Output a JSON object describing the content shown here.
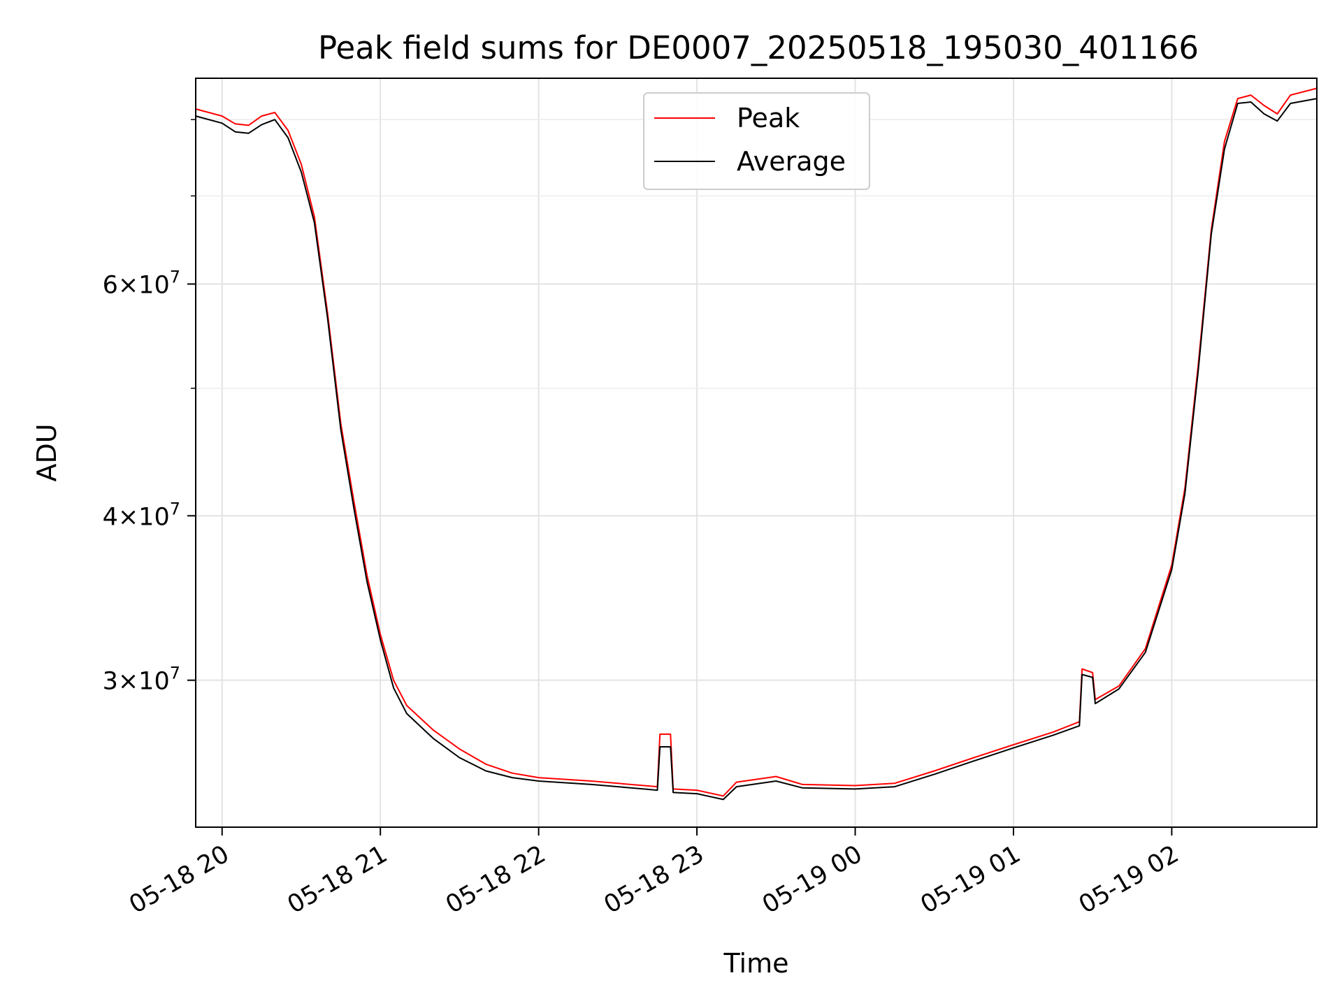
{
  "chart_data": {
    "type": "line",
    "title": "Peak field sums for DE0007_20250518_195030_401166",
    "xlabel": "Time",
    "ylabel": "ADU",
    "yscale": "log",
    "ylim": [
      23200000,
      86000000
    ],
    "xlim": [
      "2025-05-18 19:50",
      "2025-05-19 02:55"
    ],
    "x_ticks": [
      {
        "t": "2025-05-18 20:00",
        "label": "05-18 20"
      },
      {
        "t": "2025-05-18 21:00",
        "label": "05-18 21"
      },
      {
        "t": "2025-05-18 22:00",
        "label": "05-18 22"
      },
      {
        "t": "2025-05-18 23:00",
        "label": "05-18 23"
      },
      {
        "t": "2025-05-19 00:00",
        "label": "05-19 00"
      },
      {
        "t": "2025-05-19 01:00",
        "label": "05-19 01"
      },
      {
        "t": "2025-05-19 02:00",
        "label": "05-19 02"
      }
    ],
    "y_major_ticks": [
      {
        "value": 30000000,
        "mant": "3",
        "exp": "7"
      },
      {
        "value": 40000000,
        "mant": "4",
        "exp": "7"
      },
      {
        "value": 60000000,
        "mant": "6",
        "exp": "7"
      }
    ],
    "y_minor_ticks": [
      50000000,
      70000000,
      80000000
    ],
    "grid": true,
    "legend": {
      "position": "upper center"
    },
    "series": [
      {
        "name": "Peak",
        "color": "#ff0000",
        "points": [
          [
            "2025-05-18 19:50",
            81500000
          ],
          [
            "2025-05-18 20:00",
            80500000
          ],
          [
            "2025-05-18 20:05",
            79400000
          ],
          [
            "2025-05-18 20:10",
            79200000
          ],
          [
            "2025-05-18 20:15",
            80500000
          ],
          [
            "2025-05-18 20:20",
            81000000
          ],
          [
            "2025-05-18 20:25",
            78500000
          ],
          [
            "2025-05-18 20:30",
            74000000
          ],
          [
            "2025-05-18 20:35",
            67500000
          ],
          [
            "2025-05-18 20:40",
            57000000
          ],
          [
            "2025-05-18 20:45",
            47000000
          ],
          [
            "2025-05-18 20:50",
            41000000
          ],
          [
            "2025-05-18 20:55",
            36000000
          ],
          [
            "2025-05-18 21:00",
            32500000
          ],
          [
            "2025-05-18 21:05",
            30000000
          ],
          [
            "2025-05-18 21:10",
            28700000
          ],
          [
            "2025-05-18 21:20",
            27500000
          ],
          [
            "2025-05-18 21:30",
            26600000
          ],
          [
            "2025-05-18 21:40",
            25900000
          ],
          [
            "2025-05-18 21:50",
            25500000
          ],
          [
            "2025-05-18 22:00",
            25300000
          ],
          [
            "2025-05-18 22:20",
            25150000
          ],
          [
            "2025-05-18 22:40",
            24950000
          ],
          [
            "2025-05-18 22:45",
            24900000
          ],
          [
            "2025-05-18 22:46",
            27300000
          ],
          [
            "2025-05-18 22:50",
            27300000
          ],
          [
            "2025-05-18 22:51",
            24800000
          ],
          [
            "2025-05-18 23:00",
            24750000
          ],
          [
            "2025-05-18 23:10",
            24500000
          ],
          [
            "2025-05-18 23:15",
            25100000
          ],
          [
            "2025-05-18 23:30",
            25350000
          ],
          [
            "2025-05-18 23:40",
            25000000
          ],
          [
            "2025-05-19 00:00",
            24950000
          ],
          [
            "2025-05-19 00:15",
            25050000
          ],
          [
            "2025-05-19 00:30",
            25600000
          ],
          [
            "2025-05-19 00:45",
            26200000
          ],
          [
            "2025-05-19 01:00",
            26800000
          ],
          [
            "2025-05-19 01:15",
            27400000
          ],
          [
            "2025-05-19 01:25",
            27900000
          ],
          [
            "2025-05-19 01:26",
            30600000
          ],
          [
            "2025-05-19 01:30",
            30400000
          ],
          [
            "2025-05-19 01:31",
            29000000
          ],
          [
            "2025-05-19 01:40",
            29700000
          ],
          [
            "2025-05-19 01:50",
            31700000
          ],
          [
            "2025-05-19 02:00",
            36700000
          ],
          [
            "2025-05-19 02:05",
            42000000
          ],
          [
            "2025-05-19 02:10",
            52000000
          ],
          [
            "2025-05-19 02:15",
            66000000
          ],
          [
            "2025-05-19 02:20",
            77000000
          ],
          [
            "2025-05-19 02:25",
            83000000
          ],
          [
            "2025-05-19 02:30",
            83500000
          ],
          [
            "2025-05-19 02:35",
            82000000
          ],
          [
            "2025-05-19 02:40",
            80800000
          ],
          [
            "2025-05-19 02:45",
            83500000
          ],
          [
            "2025-05-19 02:55",
            84500000
          ]
        ]
      },
      {
        "name": "Average",
        "color": "#000000",
        "points": [
          [
            "2025-05-18 19:50",
            80500000
          ],
          [
            "2025-05-18 20:00",
            79500000
          ],
          [
            "2025-05-18 20:05",
            78300000
          ],
          [
            "2025-05-18 20:10",
            78100000
          ],
          [
            "2025-05-18 20:15",
            79300000
          ],
          [
            "2025-05-18 20:20",
            80000000
          ],
          [
            "2025-05-18 20:25",
            77500000
          ],
          [
            "2025-05-18 20:30",
            73000000
          ],
          [
            "2025-05-18 20:35",
            66800000
          ],
          [
            "2025-05-18 20:40",
            56500000
          ],
          [
            "2025-05-18 20:45",
            46500000
          ],
          [
            "2025-05-18 20:50",
            40500000
          ],
          [
            "2025-05-18 20:55",
            35600000
          ],
          [
            "2025-05-18 21:00",
            32200000
          ],
          [
            "2025-05-18 21:05",
            29600000
          ],
          [
            "2025-05-18 21:10",
            28300000
          ],
          [
            "2025-05-18 21:20",
            27100000
          ],
          [
            "2025-05-18 21:30",
            26200000
          ],
          [
            "2025-05-18 21:40",
            25600000
          ],
          [
            "2025-05-18 21:50",
            25300000
          ],
          [
            "2025-05-18 22:00",
            25150000
          ],
          [
            "2025-05-18 22:20",
            25000000
          ],
          [
            "2025-05-18 22:40",
            24800000
          ],
          [
            "2025-05-18 22:45",
            24750000
          ],
          [
            "2025-05-18 22:46",
            26700000
          ],
          [
            "2025-05-18 22:50",
            26700000
          ],
          [
            "2025-05-18 22:51",
            24650000
          ],
          [
            "2025-05-18 23:00",
            24600000
          ],
          [
            "2025-05-18 23:10",
            24350000
          ],
          [
            "2025-05-18 23:15",
            24900000
          ],
          [
            "2025-05-18 23:30",
            25150000
          ],
          [
            "2025-05-18 23:40",
            24850000
          ],
          [
            "2025-05-19 00:00",
            24800000
          ],
          [
            "2025-05-19 00:15",
            24900000
          ],
          [
            "2025-05-19 00:30",
            25450000
          ],
          [
            "2025-05-19 00:45",
            26050000
          ],
          [
            "2025-05-19 01:00",
            26650000
          ],
          [
            "2025-05-19 01:15",
            27250000
          ],
          [
            "2025-05-19 01:25",
            27700000
          ],
          [
            "2025-05-19 01:26",
            30300000
          ],
          [
            "2025-05-19 01:30",
            30150000
          ],
          [
            "2025-05-19 01:31",
            28800000
          ],
          [
            "2025-05-19 01:40",
            29550000
          ],
          [
            "2025-05-19 01:50",
            31500000
          ],
          [
            "2025-05-19 02:00",
            36400000
          ],
          [
            "2025-05-19 02:05",
            41600000
          ],
          [
            "2025-05-19 02:10",
            51500000
          ],
          [
            "2025-05-19 02:15",
            65500000
          ],
          [
            "2025-05-19 02:20",
            76000000
          ],
          [
            "2025-05-19 02:25",
            82300000
          ],
          [
            "2025-05-19 02:30",
            82500000
          ],
          [
            "2025-05-19 02:35",
            80800000
          ],
          [
            "2025-05-19 02:40",
            79800000
          ],
          [
            "2025-05-19 02:45",
            82300000
          ],
          [
            "2025-05-19 02:55",
            83000000
          ]
        ]
      }
    ]
  }
}
